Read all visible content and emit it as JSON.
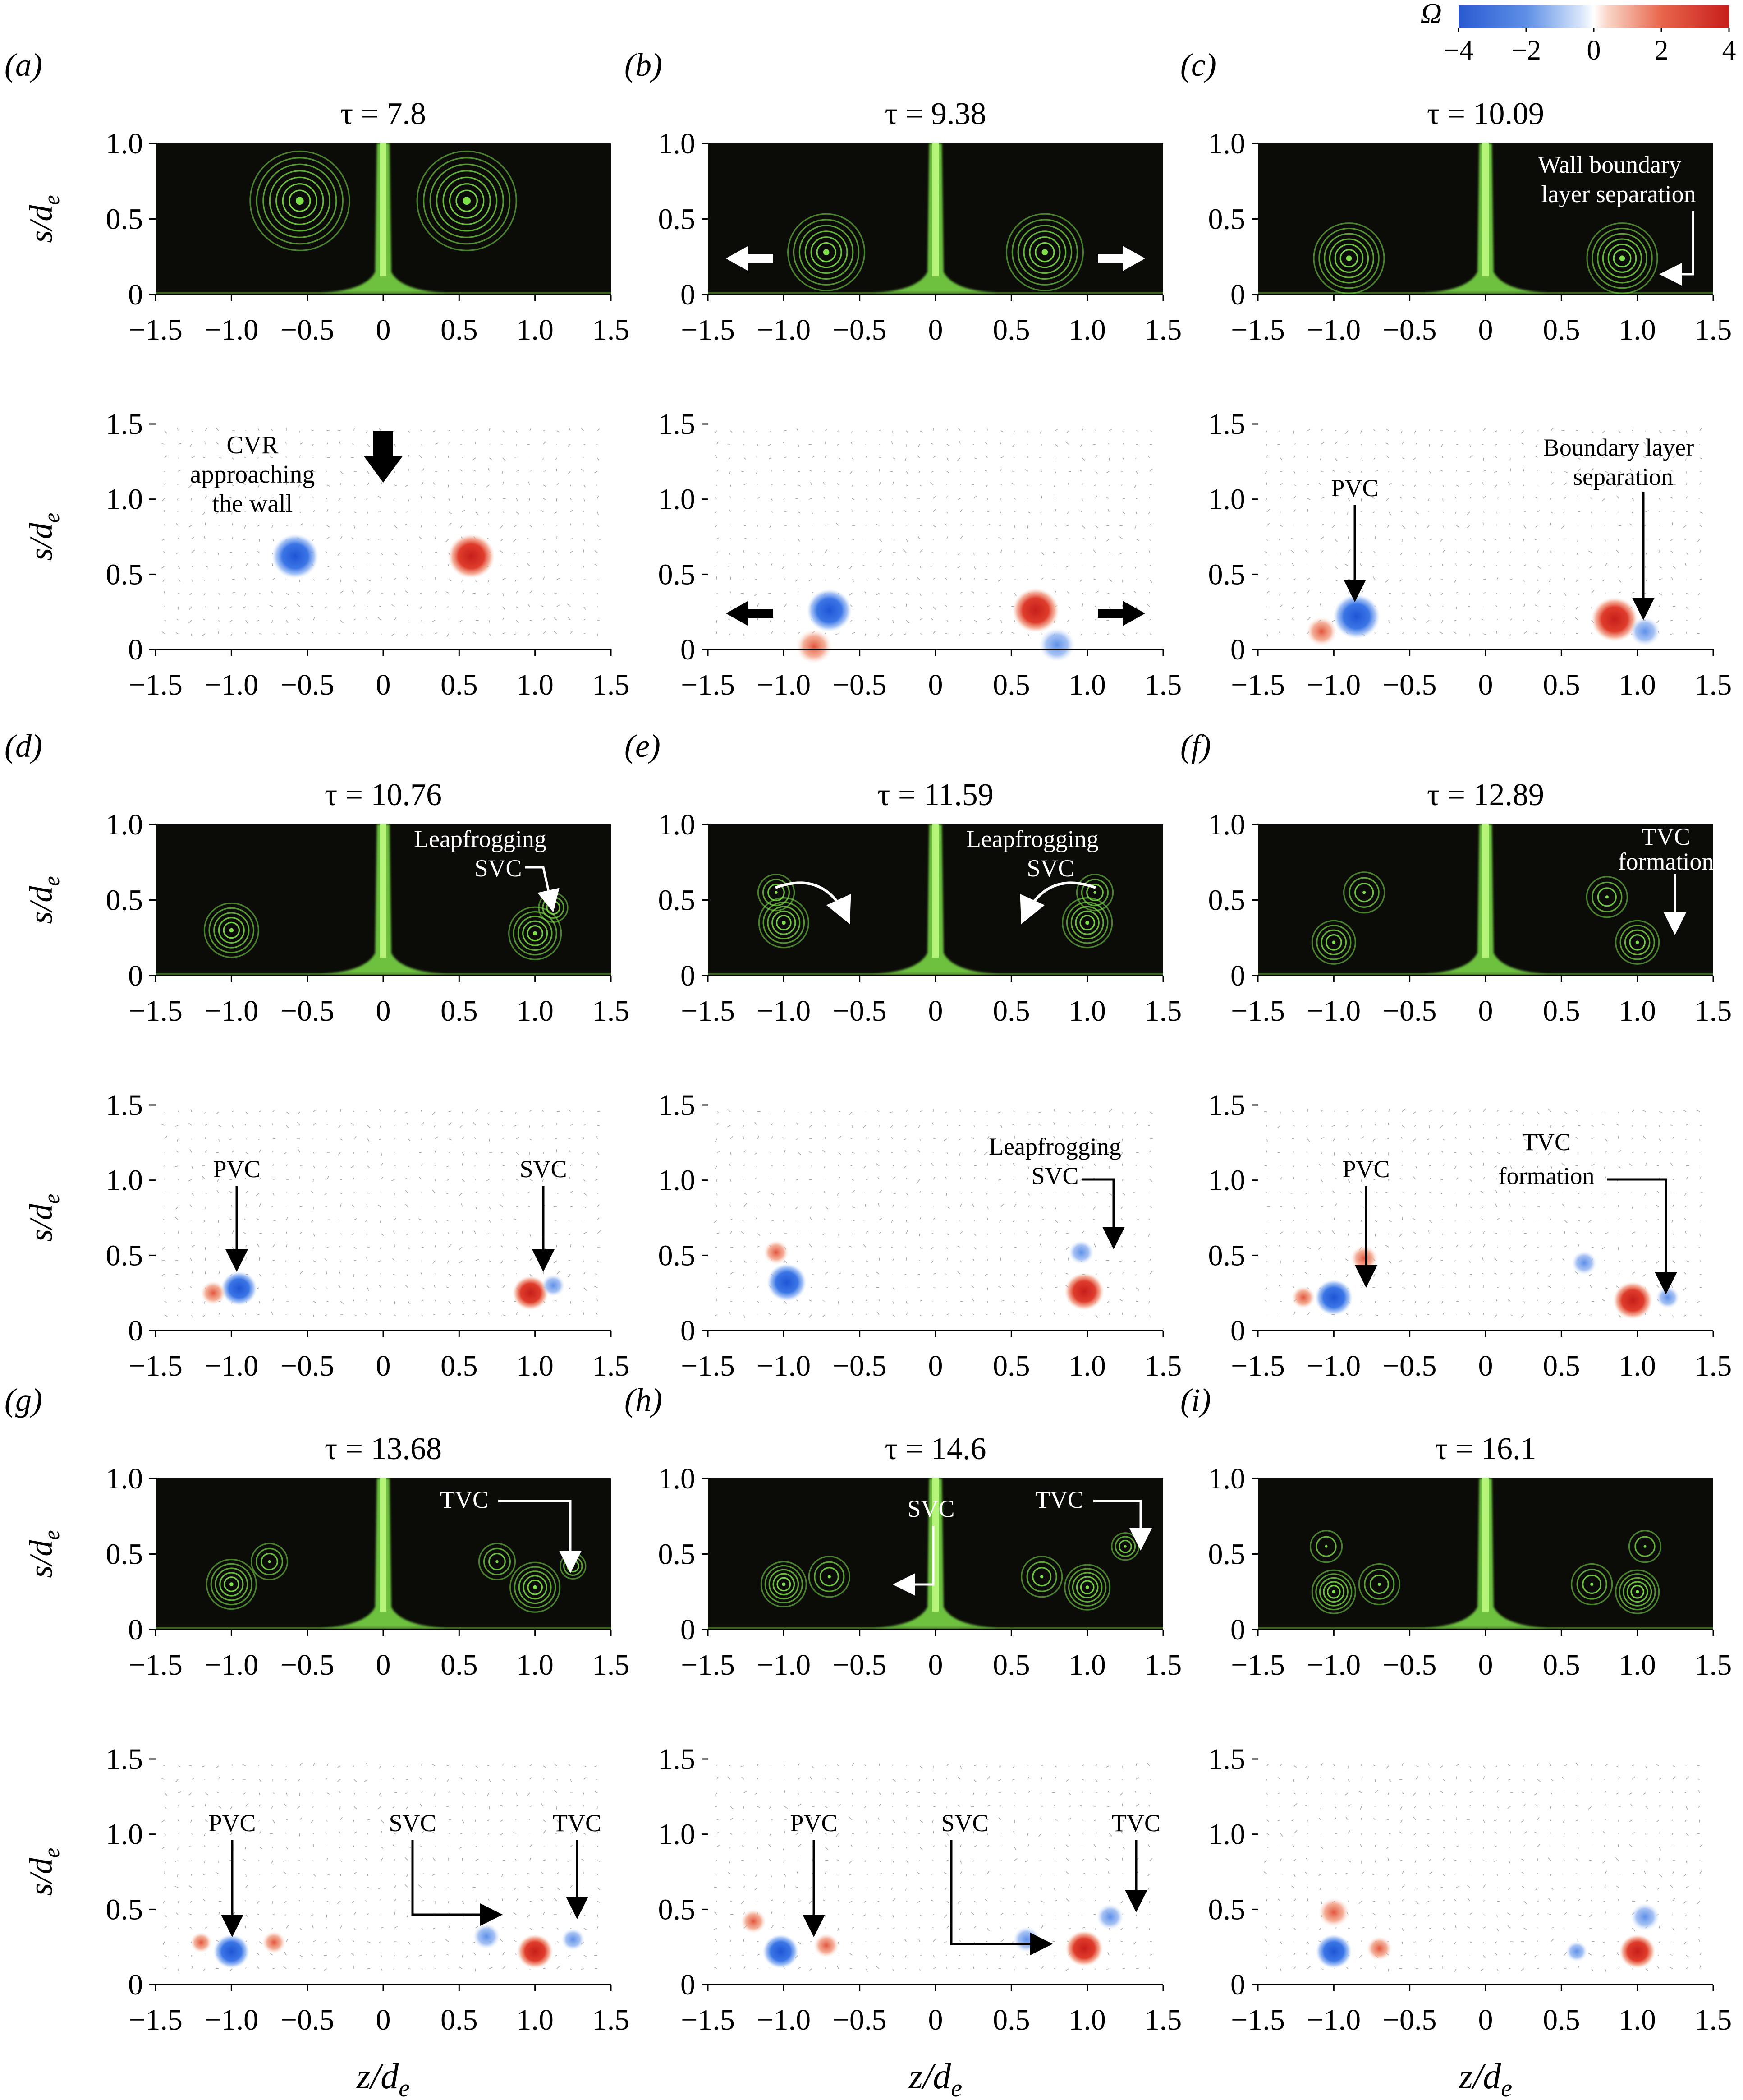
{
  "figure": {
    "x_axis_label": "z/d",
    "x_axis_sub": "e",
    "y_axis_label": "s/d",
    "y_axis_sub": "e",
    "x_ticks": [
      "−1.5",
      "−1.0",
      "−0.5",
      "0",
      "0.5",
      "1.0",
      "1.5"
    ],
    "y_ticks_visual": [
      "0",
      "0.5",
      "1.0"
    ],
    "y_ticks_piv": [
      "0",
      "0.5",
      "1.0",
      "1.5"
    ]
  },
  "colorbar": {
    "symbol": "Ω",
    "ticks": [
      "−4",
      "−2",
      "0",
      "2",
      "4"
    ],
    "min": -4,
    "max": 4,
    "colors": {
      "negative": "#3a6fd8",
      "positive": "#d2302a",
      "zero": "#ffffff"
    }
  },
  "colors": {
    "dye": "#7fe14a",
    "dye_bg": "#0b0c08",
    "positive_vortex": "#d93a2b",
    "negative_vortex": "#2f6fe0"
  },
  "panels": [
    {
      "id": "a",
      "label": "(a)",
      "tau": "τ = 7.8"
    },
    {
      "id": "b",
      "label": "(b)",
      "tau": "τ = 9.38"
    },
    {
      "id": "c",
      "label": "(c)",
      "tau": "τ = 10.09"
    },
    {
      "id": "d",
      "label": "(d)",
      "tau": "τ = 10.76"
    },
    {
      "id": "e",
      "label": "(e)",
      "tau": "τ = 11.59"
    },
    {
      "id": "f",
      "label": "(f)",
      "tau": "τ = 12.89"
    },
    {
      "id": "g",
      "label": "(g)",
      "tau": "τ = 13.68"
    },
    {
      "id": "h",
      "label": "(h)",
      "tau": "τ = 14.6"
    },
    {
      "id": "i",
      "label": "(i)",
      "tau": "τ = 16.1"
    }
  ],
  "annotations": {
    "a_piv_1": "CVR",
    "a_piv_2": "approaching",
    "a_piv_3": "the wall",
    "c_vis_1": "Wall boundary",
    "c_vis_2": "layer separation",
    "c_piv_1": "Boundary layer",
    "c_piv_2": "separation",
    "pvc": "PVC",
    "svc": "SVC",
    "tvc": "TVC",
    "leapfrogging": "Leapfrogging",
    "tvc_formation_1": "TVC",
    "tvc_formation_2": "formation",
    "formation": "formation"
  }
}
